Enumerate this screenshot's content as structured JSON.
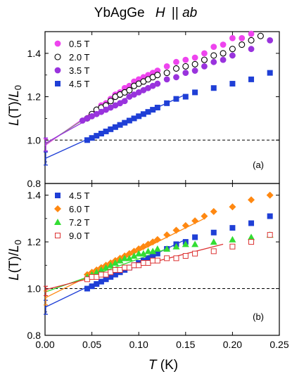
{
  "title": {
    "main": "YbAgGe",
    "field": "H",
    "orient": "||",
    "plane": "ab"
  },
  "chart_data": [
    {
      "type": "scatter",
      "panel_label": "(a)",
      "xlabel": "T (K)",
      "xlabel_var": "T",
      "xlabel_unit": "(K)",
      "ylabel": "L(T)/L0",
      "ylabel_parts": {
        "L": "L",
        "T": "(T)/",
        "L0": "L",
        "sub": "0"
      },
      "xlim": [
        0.0,
        0.25
      ],
      "ylim": [
        0.8,
        1.5
      ],
      "yticks": [
        "0.8",
        "1.0",
        "1.2",
        "1.4"
      ],
      "xticks": [],
      "reference_line": 1.0,
      "legend_position": "top-left",
      "series": [
        {
          "name": "0.5 T",
          "color": "#ee44ee",
          "marker": "circle-filled",
          "x": [
            0.045,
            0.05,
            0.055,
            0.06,
            0.065,
            0.07,
            0.075,
            0.08,
            0.085,
            0.09,
            0.095,
            0.1,
            0.105,
            0.11,
            0.115,
            0.12,
            0.13,
            0.14,
            0.15,
            0.16,
            0.17,
            0.18,
            0.19,
            0.2,
            0.21,
            0.22
          ],
          "y": [
            1.1,
            1.12,
            1.14,
            1.16,
            1.17,
            1.19,
            1.21,
            1.22,
            1.24,
            1.25,
            1.27,
            1.28,
            1.29,
            1.3,
            1.31,
            1.32,
            1.34,
            1.36,
            1.37,
            1.38,
            1.4,
            1.43,
            1.44,
            1.47,
            1.47,
            1.49
          ]
        },
        {
          "name": "2.0 T",
          "color": "#000000",
          "marker": "circle-open",
          "x": [
            0.045,
            0.05,
            0.055,
            0.06,
            0.065,
            0.07,
            0.075,
            0.08,
            0.085,
            0.09,
            0.095,
            0.1,
            0.105,
            0.11,
            0.115,
            0.12,
            0.13,
            0.14,
            0.15,
            0.16,
            0.17,
            0.18,
            0.19,
            0.2,
            0.21,
            0.22,
            0.23
          ],
          "y": [
            1.1,
            1.12,
            1.14,
            1.15,
            1.16,
            1.18,
            1.2,
            1.21,
            1.22,
            1.23,
            1.25,
            1.26,
            1.27,
            1.28,
            1.29,
            1.3,
            1.31,
            1.33,
            1.34,
            1.35,
            1.37,
            1.39,
            1.4,
            1.42,
            1.44,
            1.46,
            1.48
          ]
        },
        {
          "name": "3.5 T",
          "color": "#9933dd",
          "marker": "circle-filled",
          "x": [
            0.04,
            0.045,
            0.05,
            0.055,
            0.06,
            0.065,
            0.07,
            0.075,
            0.08,
            0.085,
            0.09,
            0.095,
            0.1,
            0.105,
            0.11,
            0.115,
            0.12,
            0.13,
            0.14,
            0.15,
            0.16,
            0.17,
            0.18,
            0.19,
            0.2,
            0.22,
            0.24
          ],
          "y": [
            1.09,
            1.1,
            1.11,
            1.12,
            1.13,
            1.14,
            1.15,
            1.16,
            1.17,
            1.18,
            1.2,
            1.21,
            1.22,
            1.23,
            1.24,
            1.25,
            1.26,
            1.28,
            1.29,
            1.31,
            1.32,
            1.34,
            1.36,
            1.37,
            1.39,
            1.42,
            1.46
          ]
        },
        {
          "name": "4.5 T",
          "color": "#1f3fd6",
          "marker": "square-filled",
          "x": [
            0.045,
            0.05,
            0.055,
            0.06,
            0.065,
            0.07,
            0.075,
            0.08,
            0.085,
            0.09,
            0.095,
            0.1,
            0.105,
            0.11,
            0.115,
            0.12,
            0.13,
            0.14,
            0.15,
            0.16,
            0.18,
            0.2,
            0.22,
            0.24
          ],
          "y": [
            1.0,
            1.01,
            1.02,
            1.03,
            1.04,
            1.05,
            1.06,
            1.07,
            1.08,
            1.09,
            1.1,
            1.11,
            1.12,
            1.13,
            1.14,
            1.15,
            1.17,
            1.19,
            1.2,
            1.22,
            1.24,
            1.26,
            1.28,
            1.31
          ]
        }
      ],
      "fits": [
        {
          "color": "#ee44ee",
          "x": [
            0.0,
            0.1
          ],
          "y": [
            0.975,
            1.28
          ]
        },
        {
          "color": "#888888",
          "x": [
            0.0,
            0.1
          ],
          "y": [
            0.98,
            1.26
          ]
        },
        {
          "color": "#9933dd",
          "x": [
            0.0,
            0.11
          ],
          "y": [
            0.985,
            1.25
          ]
        },
        {
          "color": "#1f3fd6",
          "x": [
            0.0,
            0.15
          ],
          "y": [
            0.915,
            1.21
          ]
        }
      ],
      "intercepts": [
        {
          "x": 0.0,
          "y": 0.975,
          "err": 0.03,
          "color": "#ee44ee"
        },
        {
          "x": 0.0,
          "y": 0.98,
          "err": 0.03,
          "color": "#9933dd"
        },
        {
          "x": 0.0,
          "y": 0.915,
          "err": 0.03,
          "color": "#1f3fd6"
        }
      ]
    },
    {
      "type": "scatter",
      "panel_label": "(b)",
      "xlabel": "T (K)",
      "ylabel": "L(T)/L0",
      "xlim": [
        0.0,
        0.25
      ],
      "ylim": [
        0.8,
        1.45
      ],
      "yticks": [
        "0.8",
        "1.0",
        "1.2",
        "1.4"
      ],
      "xticks": [
        "0.00",
        "0.05",
        "0.10",
        "0.15",
        "0.20",
        "0.25"
      ],
      "reference_line": 1.0,
      "legend_position": "top-left",
      "series": [
        {
          "name": "4.5 T",
          "color": "#1f3fd6",
          "marker": "square-filled",
          "x": [
            0.045,
            0.05,
            0.055,
            0.06,
            0.065,
            0.07,
            0.075,
            0.08,
            0.085,
            0.09,
            0.095,
            0.1,
            0.105,
            0.11,
            0.115,
            0.12,
            0.13,
            0.14,
            0.15,
            0.16,
            0.18,
            0.2,
            0.22,
            0.24
          ],
          "y": [
            1.0,
            1.01,
            1.02,
            1.03,
            1.04,
            1.05,
            1.06,
            1.07,
            1.08,
            1.09,
            1.1,
            1.11,
            1.12,
            1.13,
            1.14,
            1.15,
            1.17,
            1.19,
            1.2,
            1.22,
            1.24,
            1.26,
            1.28,
            1.31
          ]
        },
        {
          "name": "6.0 T",
          "color": "#ff8811",
          "marker": "diamond-filled",
          "x": [
            0.045,
            0.05,
            0.055,
            0.06,
            0.065,
            0.07,
            0.075,
            0.08,
            0.085,
            0.09,
            0.095,
            0.1,
            0.105,
            0.11,
            0.115,
            0.12,
            0.13,
            0.14,
            0.15,
            0.16,
            0.17,
            0.18,
            0.2,
            0.22,
            0.24
          ],
          "y": [
            1.06,
            1.07,
            1.08,
            1.09,
            1.1,
            1.11,
            1.12,
            1.13,
            1.14,
            1.15,
            1.16,
            1.17,
            1.18,
            1.19,
            1.2,
            1.21,
            1.23,
            1.25,
            1.27,
            1.29,
            1.31,
            1.33,
            1.35,
            1.38,
            1.4
          ]
        },
        {
          "name": "7.2 T",
          "color": "#33dd33",
          "marker": "triangle-filled",
          "x": [
            0.045,
            0.05,
            0.055,
            0.06,
            0.065,
            0.07,
            0.075,
            0.08,
            0.085,
            0.09,
            0.095,
            0.1,
            0.105,
            0.11,
            0.115,
            0.12,
            0.13,
            0.14,
            0.15,
            0.16,
            0.18,
            0.2,
            0.22,
            0.24
          ],
          "y": [
            1.05,
            1.06,
            1.07,
            1.08,
            1.09,
            1.1,
            1.11,
            1.12,
            1.13,
            1.13,
            1.14,
            1.15,
            1.15,
            1.16,
            1.16,
            1.17,
            1.17,
            1.18,
            1.19,
            1.19,
            1.2,
            1.21,
            1.22,
            1.23
          ]
        },
        {
          "name": "9.0 T",
          "color": "#dd3333",
          "marker": "square-open",
          "x": [
            0.045,
            0.05,
            0.055,
            0.06,
            0.065,
            0.07,
            0.075,
            0.08,
            0.085,
            0.09,
            0.095,
            0.1,
            0.105,
            0.11,
            0.115,
            0.12,
            0.13,
            0.14,
            0.15,
            0.16,
            0.18,
            0.2,
            0.22,
            0.24
          ],
          "y": [
            1.04,
            1.05,
            1.05,
            1.06,
            1.06,
            1.07,
            1.08,
            1.08,
            1.09,
            1.09,
            1.1,
            1.1,
            1.11,
            1.11,
            1.12,
            1.12,
            1.13,
            1.13,
            1.14,
            1.15,
            1.16,
            1.18,
            1.2,
            1.23
          ]
        }
      ],
      "fits": [
        {
          "color": "#1f3fd6",
          "x": [
            0.0,
            0.15
          ],
          "y": [
            0.92,
            1.21
          ]
        },
        {
          "color": "#ff8811",
          "x": [
            0.0,
            0.17
          ],
          "y": [
            0.96,
            1.3
          ]
        },
        {
          "color": "#33dd33",
          "x": [
            0.0,
            0.13
          ],
          "y": [
            0.985,
            1.17
          ]
        },
        {
          "color": "#dd3333",
          "x": [
            0.0,
            0.19
          ],
          "y": [
            0.995,
            1.19
          ]
        }
      ],
      "intercepts": [
        {
          "x": 0.0,
          "y": 0.92,
          "err": 0.03,
          "color": "#1f3fd6"
        },
        {
          "x": 0.0,
          "y": 0.96,
          "err": 0.03,
          "color": "#ff8811"
        },
        {
          "x": 0.0,
          "y": 0.99,
          "err": 0.02,
          "color": "#dd3333"
        }
      ]
    }
  ]
}
